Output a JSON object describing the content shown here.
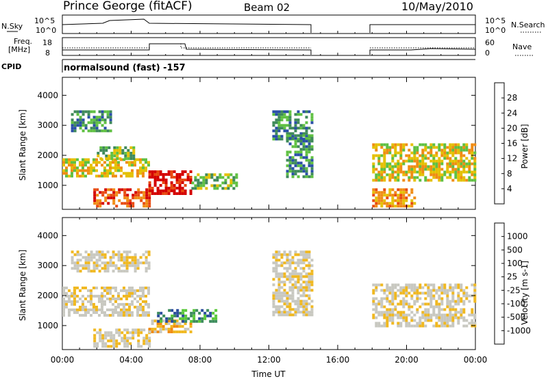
{
  "header": {
    "station": "Prince George (fitACF)",
    "beam": "Beam 02",
    "date": "10/May/2010"
  },
  "panels": {
    "nsky_label": "N.Sky",
    "nsky_ticks": [
      "10^5",
      "10^0"
    ],
    "nsearch_label": "N.Search",
    "nsearch_ticks": [
      "10^5",
      "10^0"
    ],
    "freq_label_line1": "Freq.",
    "freq_label_line2": "[MHz]",
    "freq_ticks": [
      "18",
      "8"
    ],
    "nave_label": "Nave",
    "nave_ticks": [
      "60",
      "0"
    ],
    "cpid_label": "CPID",
    "cpid_text": "normalsound (fast) -157"
  },
  "colors": {
    "power": [
      "#1c2cdc",
      "#2a4fa8",
      "#3f8a5a",
      "#5fc042",
      "#e4c000",
      "#f08c14",
      "#e84a10",
      "#d40000"
    ],
    "velocity": [
      "#e00000",
      "#f04410",
      "#f08a10",
      "#f0b820",
      "#c8c8c0",
      "#c8c8c0",
      "#58c838",
      "#3c8c5c",
      "#2a4c9c",
      "#1a2ccc"
    ]
  },
  "chart_data": [
    {
      "type": "heatmap",
      "name": "power",
      "ylabel": "Slant Range [km]",
      "ylim": [
        200,
        4600
      ],
      "yticks": [
        "1000",
        "2000",
        "3000",
        "4000"
      ],
      "xlim": [
        0,
        24
      ],
      "colorbar_label": "Power [dB]",
      "colorbar_ticks": [
        "4",
        "8",
        "12",
        "16",
        "20",
        "24",
        "28"
      ],
      "regions": [
        {
          "t0": 0.0,
          "t1": 5.0,
          "r0": 1350,
          "r1": 1900,
          "level": 4
        },
        {
          "t0": 2.0,
          "t1": 4.2,
          "r0": 1850,
          "r1": 2300,
          "level": 3
        },
        {
          "t0": 0.5,
          "t1": 2.8,
          "r0": 2800,
          "r1": 3500,
          "level": 2
        },
        {
          "t0": 1.8,
          "t1": 5.0,
          "r0": 300,
          "r1": 900,
          "level": 6
        },
        {
          "t0": 5.0,
          "t1": 7.5,
          "r0": 700,
          "r1": 1500,
          "level": 7
        },
        {
          "t0": 7.5,
          "t1": 10.2,
          "r0": 900,
          "r1": 1400,
          "level": 3
        },
        {
          "t0": 12.2,
          "t1": 14.5,
          "r0": 2500,
          "r1": 3500,
          "level": 2
        },
        {
          "t0": 13.0,
          "t1": 14.5,
          "r0": 1300,
          "r1": 2700,
          "level": 2
        },
        {
          "t0": 18.0,
          "t1": 24.0,
          "r0": 1200,
          "r1": 2400,
          "level": 4
        },
        {
          "t0": 18.0,
          "t1": 20.5,
          "r0": 300,
          "r1": 900,
          "level": 5
        }
      ]
    },
    {
      "type": "heatmap",
      "name": "velocity",
      "ylabel": "Slant Range [km]",
      "ylim": [
        200,
        4600
      ],
      "yticks": [
        "1000",
        "2000",
        "3000",
        "4000"
      ],
      "xlim": [
        0,
        24
      ],
      "xlabel": "Time UT",
      "xticks": [
        "00:00",
        "04:00",
        "08:00",
        "12:00",
        "16:00",
        "20:00",
        "00:00"
      ],
      "colorbar_label": "Velocity [m s-1]",
      "colorbar_ticks": [
        "1000",
        "500",
        "100",
        "25",
        "-25",
        "-100",
        "-500",
        "-1000"
      ],
      "regions": [
        {
          "t0": 0.0,
          "t1": 5.0,
          "r0": 1300,
          "r1": 2300,
          "level": 4
        },
        {
          "t0": 0.5,
          "t1": 5.0,
          "r0": 2800,
          "r1": 3500,
          "level": 4
        },
        {
          "t0": 1.8,
          "t1": 5.0,
          "r0": 300,
          "r1": 900,
          "level": 4
        },
        {
          "t0": 5.0,
          "t1": 7.5,
          "r0": 800,
          "r1": 1200,
          "level": 3
        },
        {
          "t0": 5.5,
          "t1": 9.0,
          "r0": 1100,
          "r1": 1550,
          "level": 7
        },
        {
          "t0": 12.2,
          "t1": 14.5,
          "r0": 1400,
          "r1": 3500,
          "level": 4
        },
        {
          "t0": 18.0,
          "t1": 24.0,
          "r0": 1000,
          "r1": 2400,
          "level": 4
        }
      ]
    }
  ]
}
